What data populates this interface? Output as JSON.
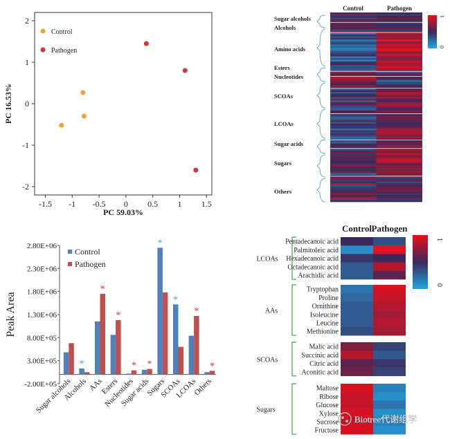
{
  "colors": {
    "control": "#f0a030",
    "pathogen": "#d9303a",
    "bar_control": "#4f81bd",
    "bar_pathogen": "#c0504d",
    "bracket": "#6aa8c8",
    "bracket_green": "#3aa34a",
    "heat_high": "#e8101a",
    "heat_low": "#1fa7e3",
    "star_blue": "#3aa0e0",
    "star_red": "#d9303a"
  },
  "watermark": "Biotree代谢组学",
  "chart_data": [
    {
      "type": "scatter",
      "xlabel": "PC   59.03%",
      "ylabel": "PC   16.53%",
      "xlim": [
        -1.7,
        1.6
      ],
      "ylim": [
        -2.2,
        2.2
      ],
      "xticks": [
        "-1.5",
        "-1",
        "-0.5",
        "0",
        "0.5",
        "1",
        "1.5"
      ],
      "xtick_values": [
        -1.5,
        -1,
        -0.5,
        0,
        0.5,
        1,
        1.5
      ],
      "yticks": [
        "2",
        "1",
        "0",
        "-1",
        "-2"
      ],
      "ytick_values": [
        2,
        1,
        0,
        -1,
        -2
      ],
      "legend_position": "top-left",
      "series": [
        {
          "name": "Control",
          "points": [
            [
              -0.8,
              0.27
            ],
            [
              -0.78,
              -0.3
            ],
            [
              -1.2,
              -0.52
            ]
          ]
        },
        {
          "name": "Pathogen",
          "points": [
            [
              0.38,
              1.45
            ],
            [
              1.1,
              0.8
            ],
            [
              1.3,
              -1.6
            ]
          ]
        }
      ]
    },
    {
      "type": "heatmap",
      "columns": [
        "Control",
        "Pathogen"
      ],
      "groups": [
        "Sugar alcohols",
        "Alcohols",
        "Amino acids",
        "Esters",
        "Nucleotides",
        "SCOAs",
        "LCOAs",
        "Sugar acids",
        "Sugars",
        "Others"
      ],
      "scale_labels": [
        "1",
        "0"
      ]
    },
    {
      "type": "bar",
      "ylabel": "Peak Area",
      "yticks": [
        "2.80E+06",
        "2.30E+06",
        "1.80E+06",
        "1.30E+06",
        "8.00E+05",
        "3.00E+05",
        "-2.00E+05"
      ],
      "ytick_values": [
        2800000,
        2300000,
        1800000,
        1300000,
        800000,
        300000,
        -200000
      ],
      "ylim": [
        -200000,
        2800000
      ],
      "categories": [
        "Sugar alcohols",
        "Alcohols",
        "AAs",
        "Esters",
        "Nucleotides",
        "Sugar acids",
        "Sugars",
        "SCOAs",
        "LCOAs",
        "Others"
      ],
      "series": [
        {
          "name": "Control",
          "values": [
            480000,
            130000,
            1150000,
            860000,
            20000,
            100000,
            2750000,
            1520000,
            840000,
            50000
          ]
        },
        {
          "name": "Pathogen",
          "values": [
            680000,
            50000,
            1750000,
            1180000,
            90000,
            120000,
            1780000,
            600000,
            1270000,
            80000
          ]
        }
      ],
      "significance": [
        {
          "category": "Alcohols",
          "series": "Control",
          "color": "blue"
        },
        {
          "category": "AAs",
          "series": "Pathogen",
          "color": "red"
        },
        {
          "category": "Esters",
          "series": "Pathogen",
          "color": "red"
        },
        {
          "category": "Nucleotides",
          "series": "Pathogen",
          "color": "red"
        },
        {
          "category": "Sugar acids",
          "series": "Pathogen",
          "color": "red"
        },
        {
          "category": "Sugars",
          "series": "Control",
          "color": "blue"
        },
        {
          "category": "SCOAs",
          "series": "Control",
          "color": "blue"
        },
        {
          "category": "LCOAs",
          "series": "Pathogen",
          "color": "red"
        },
        {
          "category": "Others",
          "series": "Pathogen",
          "color": "red"
        }
      ],
      "legend_position": "top-left"
    },
    {
      "type": "heatmap",
      "columns": [
        "Control",
        "Pathogen"
      ],
      "scale_labels": [
        "1",
        "0"
      ],
      "groups": [
        {
          "name": "LCOAs",
          "rows": [
            {
              "label": "Pentadecanoic acid",
              "values": [
                0.5,
                0.35
              ]
            },
            {
              "label": "Palmitoleic acid",
              "values": [
                0.1,
                1.0
              ]
            },
            {
              "label": "Hexadecanoic acid",
              "values": [
                0.45,
                0.5
              ]
            },
            {
              "label": "Octadecanoic acid",
              "values": [
                0.3,
                0.85
              ]
            },
            {
              "label": "Arachidic acid",
              "values": [
                0.3,
                0.6
              ]
            }
          ]
        },
        {
          "name": "AAs",
          "rows": [
            {
              "label": "Tryptophan",
              "values": [
                0.2,
                0.95
              ]
            },
            {
              "label": "Proline",
              "values": [
                0.25,
                0.9
              ]
            },
            {
              "label": "Ornithine",
              "values": [
                0.3,
                0.85
              ]
            },
            {
              "label": "Isoleucine",
              "values": [
                0.3,
                0.8
              ]
            },
            {
              "label": "Leucine",
              "values": [
                0.3,
                0.85
              ]
            },
            {
              "label": "Methionine",
              "values": [
                0.35,
                0.8
              ]
            }
          ]
        },
        {
          "name": "SCOAs",
          "rows": [
            {
              "label": "Malic acid",
              "values": [
                0.7,
                0.4
              ]
            },
            {
              "label": "Succinic acid",
              "values": [
                0.85,
                0.3
              ]
            },
            {
              "label": "Citric acid",
              "values": [
                0.6,
                0.45
              ]
            },
            {
              "label": "Aconitic acid",
              "values": [
                0.65,
                0.4
              ]
            }
          ]
        },
        {
          "name": "Sugars",
          "rows": [
            {
              "label": "Maltose",
              "values": [
                0.95,
                0.15
              ]
            },
            {
              "label": "Ribose",
              "values": [
                0.9,
                0.1
              ]
            },
            {
              "label": "Glucose",
              "values": [
                0.9,
                0.2
              ]
            },
            {
              "label": "Xylose",
              "values": [
                0.95,
                0.1
              ]
            },
            {
              "label": "Sucrose",
              "values": [
                0.9,
                0.15
              ]
            },
            {
              "label": "Fructose",
              "values": [
                0.95,
                0.1
              ]
            }
          ]
        }
      ]
    }
  ]
}
